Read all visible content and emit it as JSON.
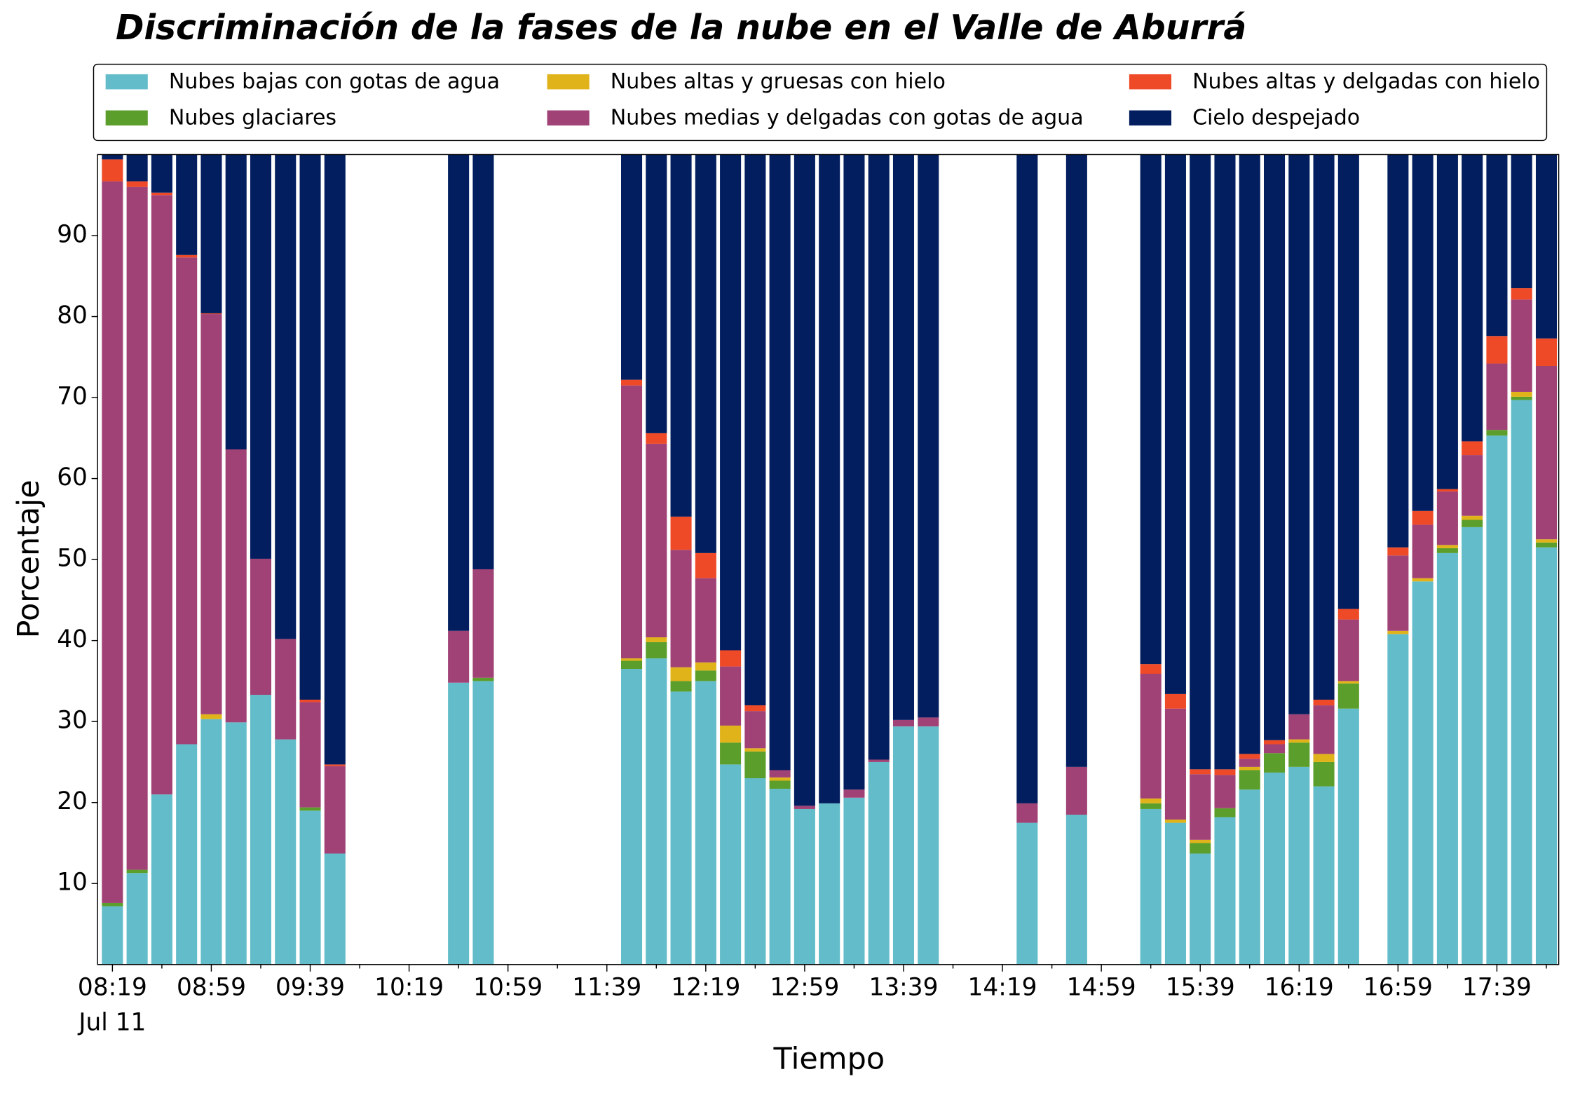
{
  "chart_data": {
    "type": "stacked_bar",
    "title": "Discriminación de la fases de la nube en el Valle de Aburrá",
    "xlabel": "Tiempo",
    "ylabel": "Porcentaje",
    "x": [
      "08:19",
      "08:29",
      "08:39",
      "08:49",
      "08:59",
      "09:09",
      "09:19",
      "09:29",
      "09:39",
      "09:49",
      "10:39",
      "10:49",
      "11:49",
      "11:59",
      "12:09",
      "12:19",
      "12:29",
      "12:39",
      "12:49",
      "12:59",
      "13:09",
      "13:19",
      "13:29",
      "13:39",
      "13:49",
      "14:29",
      "14:49",
      "15:19",
      "15:29",
      "15:39",
      "15:49",
      "15:59",
      "16:09",
      "16:19",
      "16:29",
      "16:39",
      "16:59",
      "17:09",
      "17:19",
      "17:29",
      "17:39",
      "17:49",
      "17:59"
    ],
    "x_date_label": "Jul 11",
    "xlim": [
      "08:13",
      "18:04"
    ],
    "xticks": [
      "08:19",
      "08:59",
      "09:39",
      "10:19",
      "10:59",
      "11:39",
      "12:19",
      "12:59",
      "13:39",
      "14:19",
      "14:59",
      "15:39",
      "16:19",
      "16:59",
      "17:39"
    ],
    "xminorticks": [
      "08:39",
      "09:19",
      "09:59",
      "10:39",
      "11:19",
      "11:59",
      "12:39",
      "13:19",
      "13:59",
      "14:39",
      "15:19",
      "15:59",
      "16:39",
      "17:19",
      "17:59"
    ],
    "ylim": [
      0,
      100
    ],
    "yticks": [
      10,
      20,
      30,
      40,
      50,
      60,
      70,
      80,
      90
    ],
    "grid": false,
    "legend": "top",
    "legend_columns": 3,
    "series": [
      {
        "name": "Nubes bajas con gotas de agua",
        "color": "#63bcc9",
        "values": [
          7.2,
          11.3,
          21,
          27.2,
          30.3,
          29.9,
          33.3,
          27.8,
          19,
          13.7,
          34.8,
          35,
          36.5,
          37.8,
          33.7,
          35,
          24.7,
          23,
          21.7,
          19.2,
          19.9,
          20.6,
          25,
          29.4,
          29.4,
          17.5,
          18.5,
          19.2,
          17.5,
          13.7,
          18.2,
          21.6,
          23.7,
          24.4,
          22,
          31.6,
          40.8,
          47.3,
          50.8,
          54,
          65.3,
          69.7,
          51.5
        ]
      },
      {
        "name": "Nubes glaciares",
        "color": "#5c9e2b",
        "values": [
          0.4,
          0.4,
          0,
          0,
          0,
          0,
          0,
          0,
          0.4,
          0,
          0,
          0.4,
          1,
          2,
          1.3,
          1.3,
          2.7,
          3.3,
          1,
          0,
          0,
          0,
          0,
          0,
          0,
          0,
          0,
          0.7,
          0,
          1.3,
          1.1,
          2.4,
          2.4,
          3,
          3,
          3.1,
          0,
          0,
          0.6,
          0.9,
          0.7,
          0.4,
          0.6
        ]
      },
      {
        "name": "Nubes altas y gruesas con hielo",
        "color": "#e0b31a",
        "values": [
          0,
          0,
          0,
          0,
          0.6,
          0,
          0,
          0,
          0,
          0,
          0,
          0,
          0.3,
          0.6,
          1.7,
          1,
          2.1,
          0.4,
          0.4,
          0,
          0,
          0,
          0,
          0,
          0,
          0,
          0,
          0.6,
          0.4,
          0.4,
          0,
          0.4,
          0,
          0.4,
          1,
          0.3,
          0.4,
          0.4,
          0.4,
          0.5,
          0,
          0.6,
          0.4
        ]
      },
      {
        "name": "Nubes medias y delgadas con gotas de agua",
        "color": "#a04275",
        "values": [
          89.1,
          84.3,
          74,
          60.1,
          49.4,
          33.7,
          16.8,
          12.4,
          13,
          10.8,
          6.4,
          13.4,
          33.7,
          23.9,
          14.5,
          10.4,
          7.3,
          4.6,
          0.9,
          0.4,
          0,
          1,
          0.3,
          0.8,
          1.1,
          2.4,
          5.9,
          15.4,
          13.7,
          8.1,
          4.1,
          1,
          1.1,
          3.1,
          6,
          7.6,
          9.3,
          6.6,
          6.6,
          7.5,
          8.2,
          11.4,
          21.4
        ]
      },
      {
        "name": "Nubes altas y delgadas con hielo",
        "color": "#ef4a28",
        "values": [
          2.7,
          0.7,
          0.3,
          0.3,
          0.1,
          0,
          0,
          0,
          0.3,
          0.2,
          0,
          0,
          0.7,
          1.3,
          4.1,
          3.1,
          2,
          0.7,
          0,
          0,
          0,
          0,
          0,
          0,
          0,
          0,
          0,
          1.2,
          1.8,
          0.6,
          0.7,
          0.6,
          0.5,
          0,
          0.7,
          1.3,
          1,
          1.7,
          0.3,
          1.7,
          3.4,
          1.4,
          3.4
        ]
      },
      {
        "name": "Cielo despejado",
        "color": "#021e5e",
        "values": [
          0.6,
          3.3,
          4.7,
          12.4,
          19.6,
          36.4,
          49.9,
          59.8,
          67.3,
          75.3,
          58.8,
          51.2,
          27.8,
          34.4,
          44.7,
          49.2,
          61.2,
          68,
          76,
          80.4,
          80.1,
          78.4,
          74.7,
          69.8,
          69.5,
          80.1,
          75.6,
          62.9,
          66.6,
          75.9,
          75.9,
          74,
          72.3,
          69.1,
          67.3,
          56.1,
          48.5,
          44,
          41.3,
          35.4,
          22.4,
          16.5,
          22.7
        ]
      }
    ]
  }
}
